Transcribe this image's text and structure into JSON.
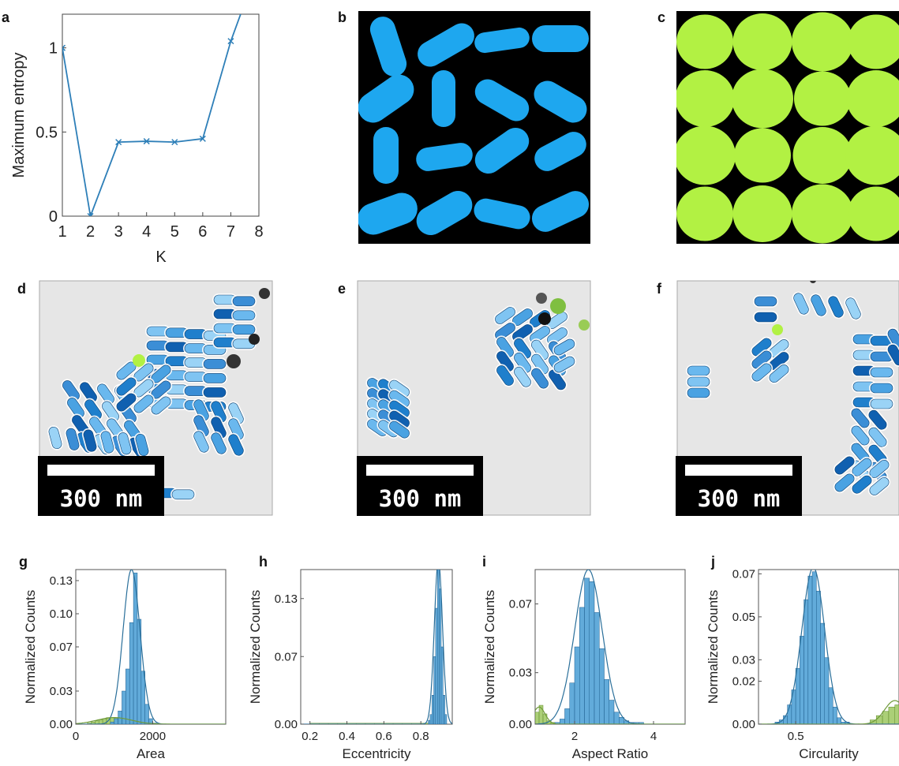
{
  "panels": {
    "a": "a",
    "b": "b",
    "c": "c",
    "d": "d",
    "e": "e",
    "f": "f",
    "g": "g",
    "h": "h",
    "i": "i",
    "j": "j"
  },
  "scale_bar_label": "300 nm",
  "colors": {
    "blue": "#2e7fb8",
    "bar_blue": "#5aa7d8",
    "rod_blue": "#1ea7ef",
    "sphere_green": "#b2f143",
    "green": "#8fbf4a",
    "em_gray": "#e4e4e4"
  },
  "chart_data": [
    {
      "panel": "a",
      "type": "line",
      "xlabel": "K",
      "ylabel": "Maximum entropy",
      "xlim": [
        1,
        8
      ],
      "ylim": [
        0,
        1.2
      ],
      "xticks": [
        1,
        2,
        3,
        4,
        5,
        6,
        7,
        8
      ],
      "yticks": [
        0,
        0.5,
        1
      ],
      "ytick_labels": [
        "0",
        "0.5",
        "1"
      ],
      "marker": "x",
      "x": [
        1,
        2,
        3,
        4,
        5,
        6,
        7,
        7.35
      ],
      "y": [
        1.0,
        0.0,
        0.44,
        0.445,
        0.44,
        0.46,
        1.04,
        1.2
      ]
    },
    {
      "panel": "g",
      "type": "bar",
      "xlabel": "Area",
      "ylabel": "Normalized Counts",
      "xlim": [
        0,
        3900
      ],
      "ylim": [
        0,
        0.14
      ],
      "xticks": [
        0,
        2000
      ],
      "xtick_labels": [
        "0",
        "2000"
      ],
      "yticks": [
        0,
        0.03,
        0.07,
        0.1,
        0.13
      ],
      "ytick_labels": [
        "0.00",
        "0.03",
        "0.07",
        "0.10",
        "0.13"
      ],
      "series": [
        {
          "name": "",
          "bin_start": 900,
          "bin_width": 100,
          "values": [
            0.002,
            0.005,
            0.012,
            0.03,
            0.05,
            0.092,
            0.137,
            0.095,
            0.048,
            0.018,
            0.005,
            0.001
          ]
        },
        {
          "name": "",
          "bin_start": 300,
          "bin_width": 100,
          "values": [
            0.001,
            0.002,
            0.003,
            0.004,
            0.005,
            0.006,
            0.006,
            0.006,
            0.005,
            0.004,
            0.003,
            0.002,
            0.002,
            0.001,
            0.001
          ]
        }
      ],
      "fit": [
        {
          "mean": 1450,
          "sd": 220,
          "peak": 0.14
        },
        {
          "mean": 1000,
          "sd": 450,
          "peak": 0.006
        }
      ]
    },
    {
      "panel": "h",
      "type": "bar",
      "xlabel": "Eccentricity",
      "ylabel": "Normalized Counts",
      "xlim": [
        0.15,
        0.97
      ],
      "ylim": [
        0,
        0.16
      ],
      "xticks": [
        0.2,
        0.4,
        0.6,
        0.8
      ],
      "xtick_labels": [
        "0.2",
        "0.4",
        "0.6",
        "0.8"
      ],
      "yticks": [
        0,
        0.07,
        0.13
      ],
      "ytick_labels": [
        "0.00",
        "0.07",
        "0.13"
      ],
      "series": [
        {
          "name": "",
          "bin_start": 0.84,
          "bin_width": 0.01,
          "values": [
            0.004,
            0.01,
            0.03,
            0.07,
            0.12,
            0.16,
            0.14,
            0.08,
            0.03,
            0.01
          ]
        },
        {
          "name": "",
          "bin_start": 0.2,
          "bin_width": 0.05,
          "values": [
            0.001,
            0.001,
            0.001,
            0.001,
            0.001,
            0.001,
            0.001,
            0.001,
            0.001,
            0.001,
            0.001,
            0.001,
            0.001
          ]
        }
      ],
      "fit": [
        {
          "mean": 0.895,
          "sd": 0.022,
          "peak": 0.17
        }
      ]
    },
    {
      "panel": "i",
      "type": "bar",
      "xlabel": "Aspect Ratio",
      "ylabel": "Normalized Counts",
      "xlim": [
        1,
        4.8
      ],
      "ylim": [
        0,
        0.09
      ],
      "xticks": [
        2,
        4
      ],
      "xtick_labels": [
        "2",
        "4"
      ],
      "yticks": [
        0,
        0.03,
        0.07
      ],
      "ytick_labels": [
        "0.00",
        "0.03",
        "0.07"
      ],
      "series": [
        {
          "name": "",
          "bin_start": 1.5,
          "bin_width": 0.125,
          "values": [
            0.001,
            0.003,
            0.009,
            0.024,
            0.045,
            0.068,
            0.085,
            0.083,
            0.065,
            0.044,
            0.026,
            0.014,
            0.007,
            0.004,
            0.002,
            0.001,
            0.001,
            0.001
          ]
        },
        {
          "name": "",
          "bin_start": 1.0,
          "bin_width": 0.1,
          "values": [
            0.007,
            0.011,
            0.006,
            0.002,
            0.001
          ]
        }
      ],
      "fit": [
        {
          "mean": 2.35,
          "sd": 0.35,
          "peak": 0.09
        },
        {
          "mean": 1.1,
          "sd": 0.15,
          "peak": 0.01
        }
      ]
    },
    {
      "panel": "j",
      "type": "bar",
      "xlabel": "Circularity",
      "ylabel": "Normalized Counts",
      "xlim": [
        0.32,
        1.0
      ],
      "ylim": [
        0,
        0.072
      ],
      "xticks": [
        0.5
      ],
      "xtick_labels": [
        "0.5"
      ],
      "yticks": [
        0,
        0.02,
        0.03,
        0.05,
        0.07
      ],
      "ytick_labels": [
        "0.00",
        "0.02",
        "0.03",
        "0.05",
        "0.07"
      ],
      "series": [
        {
          "name": "",
          "bin_start": 0.4,
          "bin_width": 0.02,
          "values": [
            0.001,
            0.002,
            0.004,
            0.009,
            0.016,
            0.026,
            0.041,
            0.058,
            0.069,
            0.071,
            0.062,
            0.047,
            0.031,
            0.017,
            0.008,
            0.003,
            0.001,
            0.001
          ]
        },
        {
          "name": "",
          "bin_start": 0.86,
          "bin_width": 0.03,
          "values": [
            0.002,
            0.004,
            0.006,
            0.008,
            0.009
          ]
        }
      ],
      "fit": [
        {
          "mean": 0.585,
          "sd": 0.055,
          "peak": 0.073
        },
        {
          "mean": 0.98,
          "sd": 0.05,
          "peak": 0.011
        }
      ]
    }
  ]
}
